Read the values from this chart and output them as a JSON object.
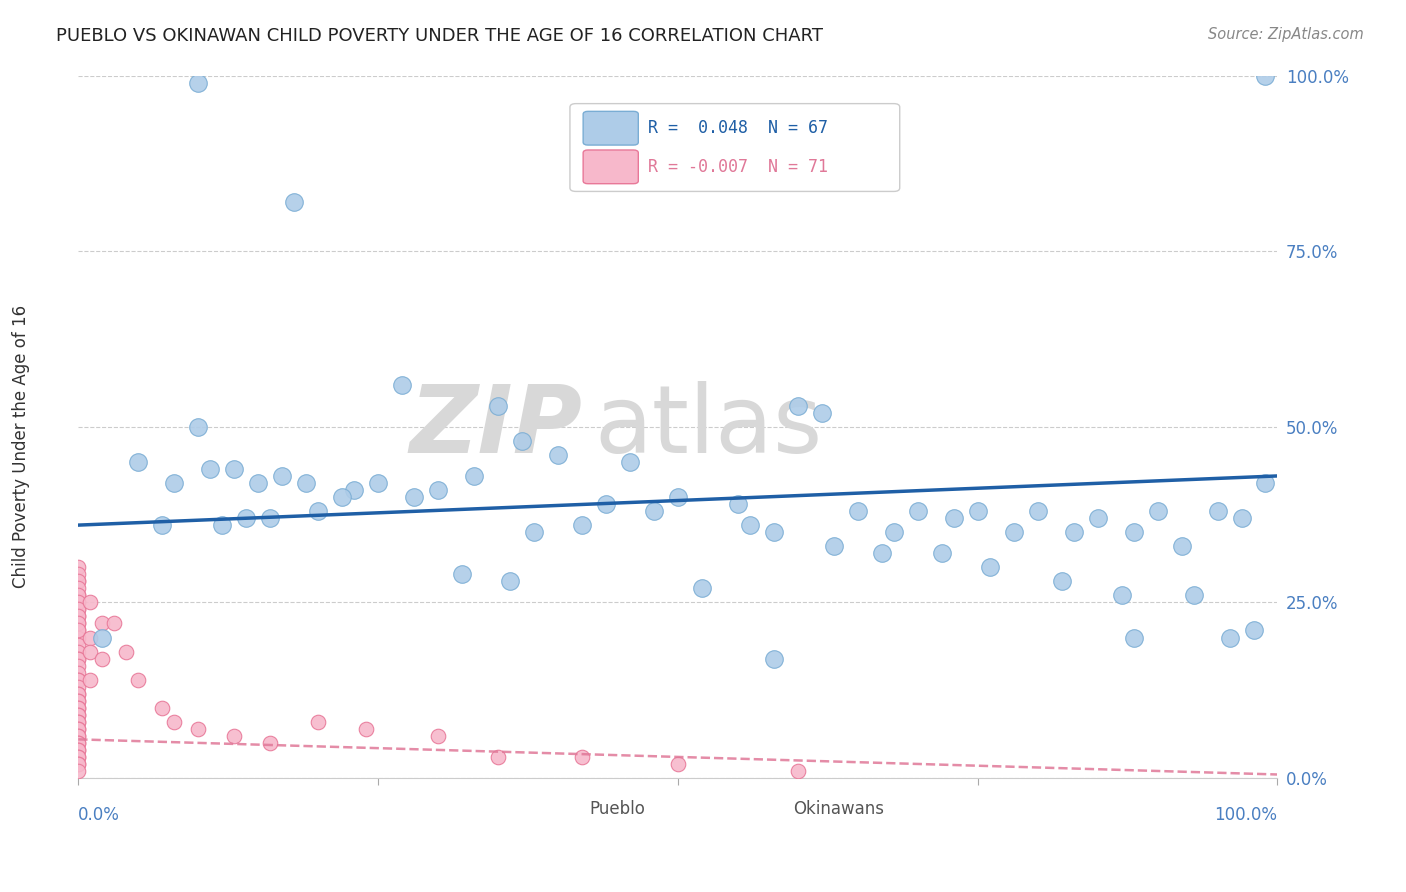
{
  "title": "PUEBLO VS OKINAWAN CHILD POVERTY UNDER THE AGE OF 16 CORRELATION CHART",
  "source": "Source: ZipAtlas.com",
  "ylabel": "Child Poverty Under the Age of 16",
  "watermark_zip": "ZIP",
  "watermark_atlas": "atlas",
  "pueblo_color": "#aecce8",
  "pueblo_edge_color": "#7aadd4",
  "okinawan_color": "#f7b8cb",
  "okinawan_edge_color": "#e87898",
  "trend_pueblo_color": "#1f5fa6",
  "trend_okinawan_color": "#e07898",
  "background_color": "#ffffff",
  "grid_color": "#cccccc",
  "legend_r_pueblo": "R =  0.048",
  "legend_n_pueblo": "N = 67",
  "legend_r_okinawan": "R = -0.007",
  "legend_n_okinawan": "N = 71",
  "pueblo_x": [
    0.1,
    0.18,
    0.27,
    0.35,
    0.37,
    0.4,
    0.46,
    0.6,
    0.62,
    0.05,
    0.08,
    0.11,
    0.13,
    0.15,
    0.17,
    0.2,
    0.23,
    0.25,
    0.28,
    0.3,
    0.33,
    0.48,
    0.5,
    0.55,
    0.58,
    0.65,
    0.68,
    0.7,
    0.73,
    0.75,
    0.78,
    0.8,
    0.83,
    0.85,
    0.88,
    0.9,
    0.92,
    0.95,
    0.97,
    0.99,
    0.07,
    0.12,
    0.14,
    0.16,
    0.19,
    0.22,
    0.38,
    0.42,
    0.44,
    0.52,
    0.56,
    0.63,
    0.67,
    0.72,
    0.76,
    0.82,
    0.87,
    0.93,
    0.02,
    0.32,
    0.36,
    0.58,
    0.88,
    0.96,
    0.98,
    0.99,
    0.1
  ],
  "pueblo_y": [
    0.99,
    0.82,
    0.56,
    0.53,
    0.48,
    0.46,
    0.45,
    0.53,
    0.52,
    0.45,
    0.42,
    0.44,
    0.44,
    0.42,
    0.43,
    0.38,
    0.41,
    0.42,
    0.4,
    0.41,
    0.43,
    0.38,
    0.4,
    0.39,
    0.35,
    0.38,
    0.35,
    0.38,
    0.37,
    0.38,
    0.35,
    0.38,
    0.35,
    0.37,
    0.35,
    0.38,
    0.33,
    0.38,
    0.37,
    0.42,
    0.36,
    0.36,
    0.37,
    0.37,
    0.42,
    0.4,
    0.35,
    0.36,
    0.39,
    0.27,
    0.36,
    0.33,
    0.32,
    0.32,
    0.3,
    0.28,
    0.26,
    0.26,
    0.2,
    0.29,
    0.28,
    0.17,
    0.2,
    0.2,
    0.21,
    1.0,
    0.5
  ],
  "okinawan_x": [
    0.0,
    0.0,
    0.0,
    0.0,
    0.0,
    0.0,
    0.0,
    0.0,
    0.0,
    0.0,
    0.0,
    0.0,
    0.0,
    0.0,
    0.0,
    0.0,
    0.0,
    0.0,
    0.0,
    0.0,
    0.0,
    0.0,
    0.0,
    0.0,
    0.0,
    0.0,
    0.0,
    0.0,
    0.0,
    0.0,
    0.0,
    0.0,
    0.0,
    0.0,
    0.0,
    0.0,
    0.0,
    0.0,
    0.0,
    0.0,
    0.0,
    0.0,
    0.0,
    0.0,
    0.0,
    0.0,
    0.0,
    0.0,
    0.0,
    0.0,
    0.01,
    0.01,
    0.01,
    0.01,
    0.02,
    0.02,
    0.03,
    0.04,
    0.05,
    0.07,
    0.08,
    0.1,
    0.13,
    0.16,
    0.2,
    0.24,
    0.3,
    0.35,
    0.42,
    0.5,
    0.6
  ],
  "okinawan_y": [
    0.28,
    0.26,
    0.25,
    0.24,
    0.23,
    0.22,
    0.21,
    0.2,
    0.19,
    0.18,
    0.17,
    0.17,
    0.16,
    0.15,
    0.14,
    0.14,
    0.13,
    0.12,
    0.12,
    0.11,
    0.11,
    0.1,
    0.1,
    0.09,
    0.09,
    0.08,
    0.08,
    0.07,
    0.07,
    0.06,
    0.06,
    0.05,
    0.05,
    0.04,
    0.04,
    0.03,
    0.03,
    0.02,
    0.02,
    0.01,
    0.3,
    0.29,
    0.28,
    0.27,
    0.26,
    0.25,
    0.24,
    0.23,
    0.22,
    0.21,
    0.25,
    0.2,
    0.18,
    0.14,
    0.22,
    0.17,
    0.22,
    0.18,
    0.14,
    0.1,
    0.08,
    0.07,
    0.06,
    0.05,
    0.08,
    0.07,
    0.06,
    0.03,
    0.03,
    0.02,
    0.01
  ],
  "pueblo_trend_x0": 0.0,
  "pueblo_trend_y0": 0.36,
  "pueblo_trend_x1": 1.0,
  "pueblo_trend_y1": 0.43,
  "okinawan_trend_x0": 0.0,
  "okinawan_trend_y0": 0.055,
  "okinawan_trend_x1": 1.0,
  "okinawan_trend_y1": 0.005,
  "xlim": [
    0.0,
    1.0
  ],
  "ylim": [
    0.0,
    1.0
  ],
  "yticks": [
    0.0,
    0.25,
    0.5,
    0.75,
    1.0
  ],
  "ytick_labels_right": [
    "0.0%",
    "25.0%",
    "50.0%",
    "75.0%",
    "100.0%"
  ],
  "xticks": [
    0.0,
    0.25,
    0.5,
    0.75,
    1.0
  ],
  "xtick_label_left": "0.0%",
  "xtick_label_right": "100.0%"
}
